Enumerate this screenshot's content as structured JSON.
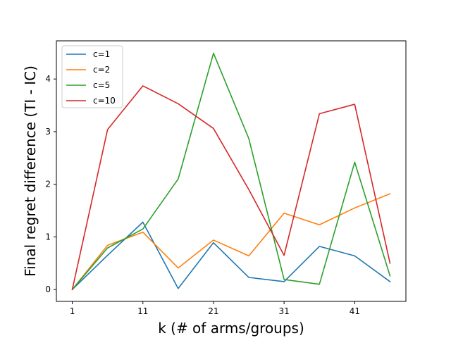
{
  "chart_data": {
    "type": "line",
    "title": "",
    "xlabel": "k (# of arms/groups)",
    "ylabel": "Final regret difference (TI - IC)",
    "x": [
      1,
      6,
      11,
      16,
      21,
      26,
      31,
      36,
      41,
      46
    ],
    "xticks": [
      1,
      11,
      21,
      31,
      41
    ],
    "yticks": [
      0,
      1,
      2,
      3,
      4
    ],
    "xlim": [
      -1.25,
      48.25
    ],
    "ylim": [
      -0.225,
      4.725
    ],
    "grid": false,
    "legend": "top-left",
    "series": [
      {
        "name": "c=1",
        "color": "#1f77b4",
        "values": [
          0,
          0.65,
          1.28,
          0.02,
          0.89,
          0.23,
          0.15,
          0.82,
          0.64,
          0.15
        ]
      },
      {
        "name": "c=2",
        "color": "#ff7f0e",
        "values": [
          0,
          0.84,
          1.09,
          0.41,
          0.94,
          0.64,
          1.45,
          1.23,
          1.55,
          1.82
        ]
      },
      {
        "name": "c=5",
        "color": "#2ca02c",
        "values": [
          0,
          0.79,
          1.15,
          2.1,
          4.49,
          2.87,
          0.19,
          0.1,
          2.42,
          0.26
        ]
      },
      {
        "name": "c=10",
        "color": "#d62728",
        "values": [
          0,
          3.04,
          3.87,
          3.53,
          3.06,
          1.9,
          0.65,
          3.34,
          3.52,
          0.5
        ]
      }
    ]
  }
}
